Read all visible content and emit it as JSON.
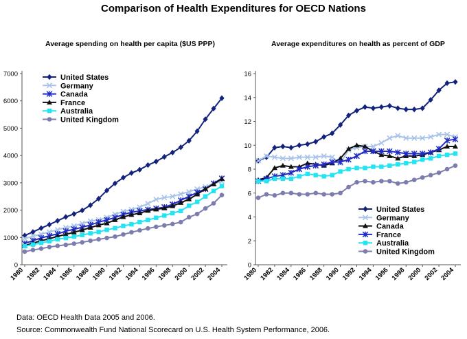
{
  "page": {
    "title": "Comparison of Health Expenditures for OECD Nations",
    "footer_data": "Data: OECD Health Data 2005 and 2006.",
    "footer_source": "Source: Commonwealth Fund National Scorecard on U.S. Health System Performance, 2006."
  },
  "chart_data": [
    {
      "type": "line",
      "title": "Average spending on health per capita ($US PPP)",
      "xlabel": "",
      "ylabel": "",
      "x": [
        1980,
        1981,
        1982,
        1983,
        1984,
        1985,
        1986,
        1987,
        1988,
        1989,
        1990,
        1991,
        1992,
        1993,
        1994,
        1995,
        1996,
        1997,
        1998,
        1999,
        2000,
        2001,
        2002,
        2003,
        2004
      ],
      "xticks": [
        "1980",
        "1982",
        "1984",
        "1986",
        "1988",
        "1990",
        "1992",
        "1994",
        "1996",
        "1998",
        "2000",
        "2002",
        "2004"
      ],
      "ylim": [
        0,
        7000
      ],
      "yticks": [
        "0",
        "1000",
        "2000",
        "3000",
        "4000",
        "5000",
        "6000",
        "7000"
      ],
      "grid": false,
      "legend_position": "top-left",
      "series": [
        {
          "name": "United States",
          "color": "#13237d",
          "marker": "diamond",
          "values": [
            1070,
            1200,
            1340,
            1470,
            1610,
            1750,
            1860,
            1990,
            2180,
            2420,
            2720,
            2980,
            3190,
            3360,
            3480,
            3650,
            3780,
            3950,
            4110,
            4300,
            4540,
            4890,
            5330,
            5720,
            6100
          ]
        },
        {
          "name": "Germany",
          "color": "#a9c4e8",
          "marker": "cross",
          "values": [
            960,
            1040,
            1120,
            1200,
            1280,
            1360,
            1420,
            1510,
            1600,
            1640,
            1730,
            1850,
            1950,
            2020,
            2110,
            2240,
            2390,
            2460,
            2500,
            2590,
            2670,
            2770,
            2850,
            2980,
            3050
          ]
        },
        {
          "name": "Canada",
          "color": "#1f2bc4",
          "marker": "star",
          "values": [
            780,
            880,
            980,
            1060,
            1130,
            1230,
            1300,
            1370,
            1460,
            1560,
            1640,
            1730,
            1840,
            1920,
            1970,
            2020,
            2060,
            2110,
            2210,
            2360,
            2500,
            2650,
            2770,
            2980,
            3160
          ]
        },
        {
          "name": "France",
          "color": "#111111",
          "marker": "triangle",
          "values": [
            700,
            790,
            880,
            950,
            1040,
            1110,
            1190,
            1270,
            1360,
            1450,
            1520,
            1640,
            1750,
            1830,
            1890,
            1980,
            2030,
            2070,
            2150,
            2270,
            2400,
            2580,
            2780,
            2950,
            3150
          ]
        },
        {
          "name": "Australia",
          "color": "#22e4f2",
          "marker": "square",
          "values": [
            680,
            740,
            800,
            860,
            930,
            980,
            1030,
            1090,
            1150,
            1200,
            1280,
            1340,
            1420,
            1480,
            1560,
            1640,
            1720,
            1800,
            1890,
            1970,
            2160,
            2300,
            2500,
            2700,
            2880
          ]
        },
        {
          "name": "United Kingdom",
          "color": "#7c7cae",
          "marker": "circle",
          "values": [
            480,
            540,
            590,
            650,
            690,
            730,
            770,
            820,
            880,
            930,
            980,
            1030,
            1110,
            1190,
            1260,
            1330,
            1390,
            1440,
            1490,
            1560,
            1740,
            1860,
            2060,
            2250,
            2550
          ]
        }
      ]
    },
    {
      "type": "line",
      "title": "Average expenditures on health as percent of GDP",
      "xlabel": "",
      "ylabel": "",
      "x": [
        1980,
        1981,
        1982,
        1983,
        1984,
        1985,
        1986,
        1987,
        1988,
        1989,
        1990,
        1991,
        1992,
        1993,
        1994,
        1995,
        1996,
        1997,
        1998,
        1999,
        2000,
        2001,
        2002,
        2003,
        2004
      ],
      "xticks": [
        "1980",
        "1982",
        "1984",
        "1986",
        "1988",
        "1990",
        "1992",
        "1994",
        "1996",
        "1998",
        "2000",
        "2002",
        "2004"
      ],
      "ylim": [
        0,
        16
      ],
      "yticks": [
        "0",
        "2",
        "4",
        "6",
        "8",
        "10",
        "12",
        "14",
        "16"
      ],
      "grid": false,
      "legend_position": "bottom-right",
      "series": [
        {
          "name": "United States",
          "color": "#13237d",
          "marker": "diamond",
          "values": [
            8.7,
            9.0,
            9.8,
            9.9,
            9.8,
            10.0,
            10.1,
            10.3,
            10.7,
            11.0,
            11.7,
            12.5,
            12.9,
            13.2,
            13.1,
            13.2,
            13.3,
            13.1,
            13.0,
            13.0,
            13.1,
            13.8,
            14.6,
            15.2,
            15.3
          ]
        },
        {
          "name": "Germany",
          "color": "#a9c4e8",
          "marker": "cross",
          "values": [
            8.7,
            9.1,
            9.0,
            8.9,
            8.9,
            9.0,
            9.0,
            9.0,
            9.1,
            9.0,
            8.5,
            9.6,
            9.8,
            9.9,
            9.9,
            10.2,
            10.6,
            10.8,
            10.6,
            10.6,
            10.6,
            10.7,
            10.9,
            10.9,
            10.7
          ]
        },
        {
          "name": "Canada",
          "color": "#111111",
          "marker": "triangle",
          "values": [
            7.1,
            7.3,
            8.1,
            8.3,
            8.2,
            8.2,
            8.5,
            8.4,
            8.3,
            8.5,
            8.9,
            9.7,
            10.0,
            9.9,
            9.5,
            9.2,
            9.1,
            8.9,
            9.1,
            9.1,
            9.2,
            9.4,
            9.6,
            9.9,
            9.9
          ]
        },
        {
          "name": "France",
          "color": "#1f2bc4",
          "marker": "star",
          "values": [
            7.0,
            7.2,
            7.4,
            7.5,
            7.7,
            8.0,
            8.2,
            8.3,
            8.4,
            8.6,
            8.6,
            8.8,
            9.1,
            9.5,
            9.5,
            9.5,
            9.5,
            9.4,
            9.3,
            9.3,
            9.3,
            9.4,
            9.7,
            10.4,
            10.5
          ]
        },
        {
          "name": "Australia",
          "color": "#22e4f2",
          "marker": "square",
          "values": [
            7.0,
            7.0,
            7.2,
            7.2,
            7.2,
            7.4,
            7.6,
            7.5,
            7.4,
            7.5,
            7.8,
            8.0,
            8.1,
            8.1,
            8.2,
            8.2,
            8.3,
            8.4,
            8.5,
            8.6,
            8.8,
            8.9,
            9.1,
            9.2,
            9.3
          ]
        },
        {
          "name": "United Kingdom",
          "color": "#7c7cae",
          "marker": "circle",
          "values": [
            5.6,
            5.9,
            5.8,
            6.0,
            6.0,
            5.9,
            5.9,
            6.0,
            5.9,
            5.9,
            6.0,
            6.5,
            6.9,
            7.0,
            6.9,
            7.0,
            7.0,
            6.8,
            6.9,
            7.1,
            7.3,
            7.5,
            7.7,
            8.0,
            8.3
          ]
        }
      ]
    }
  ]
}
